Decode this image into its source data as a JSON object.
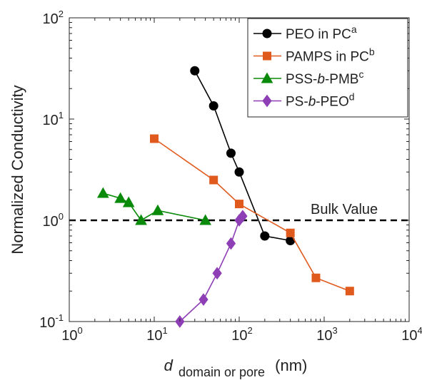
{
  "chart_data": {
    "type": "line",
    "x_scale": "log",
    "y_scale": "log",
    "xlim": [
      1,
      10000
    ],
    "ylim": [
      0.1,
      100
    ],
    "xlabel": {
      "main": "d",
      "sub": "domain or pore",
      "unit": "(nm)"
    },
    "ylabel": "Normalized Conductivity",
    "x_ticks": [
      {
        "base": "10",
        "exp": "0",
        "value": 1
      },
      {
        "base": "10",
        "exp": "1",
        "value": 10
      },
      {
        "base": "10",
        "exp": "2",
        "value": 100
      },
      {
        "base": "10",
        "exp": "3",
        "value": 1000
      },
      {
        "base": "10",
        "exp": "4",
        "value": 10000
      }
    ],
    "y_ticks": [
      {
        "base": "10",
        "exp": "-1",
        "value": 0.1
      },
      {
        "base": "10",
        "exp": "0",
        "value": 1
      },
      {
        "base": "10",
        "exp": "1",
        "value": 10
      },
      {
        "base": "10",
        "exp": "2",
        "value": 100
      }
    ],
    "legend_position": "top-right",
    "reference_line": {
      "y": 1.0,
      "label": "Bulk Value",
      "color": "#000000",
      "style": "dashed"
    },
    "series": [
      {
        "name": "PEO in PC",
        "sup": "a",
        "color": "#000000",
        "marker": "circle",
        "x": [
          30,
          50,
          80,
          100,
          200,
          400
        ],
        "y": [
          30,
          13.5,
          4.6,
          3.0,
          0.7,
          0.63
        ]
      },
      {
        "name": "PAMPS in PC",
        "sup": "b",
        "color": "#e05a1e",
        "marker": "square",
        "x": [
          10,
          50,
          100,
          400,
          800,
          2000
        ],
        "y": [
          6.4,
          2.5,
          1.45,
          0.75,
          0.27,
          0.2
        ]
      },
      {
        "name": "PSS-b-PMB",
        "sup": "c",
        "color": "#0a8a0a",
        "marker": "triangle",
        "x": [
          2.5,
          4,
          5,
          7,
          11,
          40
        ],
        "y": [
          1.85,
          1.65,
          1.5,
          1.0,
          1.25,
          1.0
        ]
      },
      {
        "name": "PS-b-PEO",
        "sup": "d",
        "color": "#8e3fb5",
        "marker": "diamond",
        "x": [
          20,
          38,
          55,
          80,
          100,
          110
        ],
        "y": [
          0.1,
          0.165,
          0.3,
          0.59,
          1.0,
          1.1
        ]
      }
    ]
  }
}
